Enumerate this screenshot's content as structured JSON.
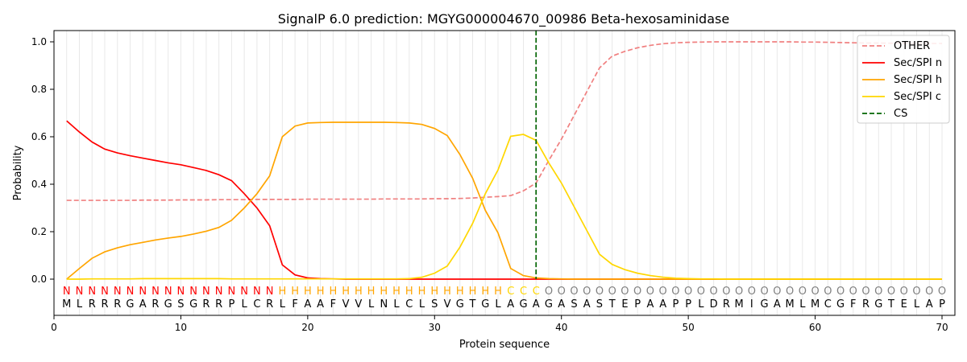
{
  "chart_data": {
    "type": "line",
    "title": "SignalP 6.0 prediction: MGYG000004670_00986 Beta-hexosaminidase",
    "xlabel": "Protein sequence",
    "ylabel": "Probability",
    "xlim": [
      0,
      71
    ],
    "ylim": [
      -0.15,
      1.05
    ],
    "xticks": [
      0,
      10,
      20,
      30,
      40,
      50,
      60,
      70
    ],
    "yticks": [
      0.0,
      0.2,
      0.4,
      0.6,
      0.8,
      1.0
    ],
    "legend_position": "top-right",
    "sequence": "MLRRRGARGSGRRPLCRLFAAFVVLNLCLSVGTGLAGAGASASTEPAAPPLDRMIGAMLMCGFRGTELAP",
    "labels": "NNNNNNNNNNNNNNNNNHHHHHHHHHHHHHHHHHHCCCOOOOOOOOOOOOOOOOOOOOOOOOOOOOOOOO",
    "label_colors": {
      "N": "#ff0000",
      "H": "#ffa500",
      "C": "#ffd700",
      "O": "#808080"
    },
    "cs_position": 38,
    "series": [
      {
        "name": "OTHER",
        "color": "#f08080",
        "dash": true,
        "values": [
          0.332,
          0.332,
          0.332,
          0.332,
          0.332,
          0.332,
          0.333,
          0.333,
          0.333,
          0.334,
          0.334,
          0.334,
          0.335,
          0.335,
          0.335,
          0.336,
          0.336,
          0.336,
          0.336,
          0.337,
          0.337,
          0.337,
          0.337,
          0.337,
          0.337,
          0.338,
          0.338,
          0.338,
          0.338,
          0.339,
          0.339,
          0.34,
          0.342,
          0.345,
          0.348,
          0.352,
          0.372,
          0.405,
          0.5,
          0.59,
          0.69,
          0.79,
          0.89,
          0.94,
          0.96,
          0.975,
          0.985,
          0.992,
          0.996,
          0.998,
          0.999,
          1.0,
          1.0,
          1.0,
          1.0,
          1.0,
          1.0,
          1.0,
          0.999,
          0.999,
          0.998,
          0.997,
          0.996,
          0.995,
          0.995,
          0.994,
          0.994,
          0.993,
          0.993,
          0.993
        ]
      },
      {
        "name": "Sec/SPI n",
        "color": "#ff0000",
        "dash": false,
        "values": [
          0.667,
          0.62,
          0.578,
          0.548,
          0.532,
          0.52,
          0.51,
          0.5,
          0.49,
          0.482,
          0.47,
          0.458,
          0.44,
          0.415,
          0.36,
          0.3,
          0.225,
          0.06,
          0.018,
          0.005,
          0.002,
          0.001,
          0,
          0,
          0,
          0,
          0,
          0,
          0,
          0,
          0,
          0,
          0,
          0,
          0,
          0,
          0,
          0,
          0,
          0,
          0,
          0,
          0,
          0,
          0,
          0,
          0,
          0,
          0,
          0,
          0,
          0,
          0,
          0,
          0,
          0,
          0,
          0,
          0,
          0,
          0,
          0,
          0,
          0,
          0,
          0,
          0,
          0,
          0,
          0
        ]
      },
      {
        "name": "Sec/SPI h",
        "color": "#ffa500",
        "dash": false,
        "values": [
          0.0,
          0.045,
          0.088,
          0.115,
          0.132,
          0.145,
          0.155,
          0.165,
          0.173,
          0.18,
          0.19,
          0.202,
          0.218,
          0.248,
          0.3,
          0.36,
          0.435,
          0.6,
          0.645,
          0.658,
          0.66,
          0.661,
          0.661,
          0.661,
          0.661,
          0.661,
          0.66,
          0.658,
          0.652,
          0.635,
          0.605,
          0.525,
          0.425,
          0.29,
          0.195,
          0.045,
          0.015,
          0.005,
          0.002,
          0.001,
          0,
          0,
          0,
          0,
          0,
          0,
          0,
          0,
          0,
          0,
          0,
          0,
          0,
          0,
          0,
          0,
          0,
          0,
          0,
          0,
          0,
          0,
          0,
          0,
          0,
          0,
          0,
          0,
          0,
          0
        ]
      },
      {
        "name": "Sec/SPI c",
        "color": "#ffd700",
        "dash": false,
        "values": [
          0.0,
          0.0,
          0.001,
          0.001,
          0.001,
          0.001,
          0.002,
          0.002,
          0.002,
          0.002,
          0.002,
          0.002,
          0.002,
          0.001,
          0.001,
          0.001,
          0.001,
          0.001,
          0.001,
          0.001,
          0.001,
          0.001,
          0.001,
          0.001,
          0.001,
          0.001,
          0.001,
          0.002,
          0.008,
          0.025,
          0.055,
          0.135,
          0.235,
          0.36,
          0.46,
          0.602,
          0.61,
          0.585,
          0.49,
          0.405,
          0.305,
          0.205,
          0.105,
          0.062,
          0.04,
          0.025,
          0.015,
          0.008,
          0.004,
          0.002,
          0.001,
          0.001,
          0,
          0,
          0,
          0,
          0,
          0,
          0,
          0,
          0,
          0,
          0,
          0,
          0,
          0,
          0,
          0,
          0,
          0
        ]
      }
    ],
    "cs_legend": {
      "name": "CS",
      "color": "#006400"
    }
  }
}
